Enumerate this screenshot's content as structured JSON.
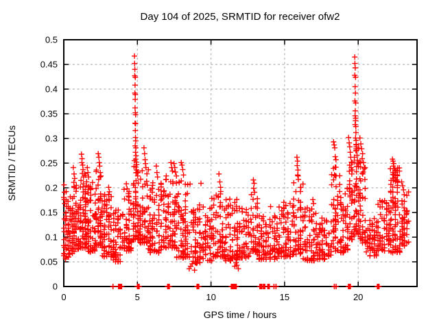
{
  "chart_data": {
    "type": "scatter",
    "title": "Day 104 of 2025, SRMTID for receiver ofw2",
    "xlabel": "GPS time / hours",
    "ylabel": "SRMTID / TECUs",
    "xlim": [
      0,
      24
    ],
    "ylim": [
      0,
      0.5
    ],
    "xticks": [
      "0",
      "5",
      "10",
      "15",
      "20"
    ],
    "yticks": [
      "0",
      "0.05",
      "0.1",
      "0.15",
      "0.2",
      "0.25",
      "0.3",
      "0.35",
      "0.4",
      "0.45",
      "0.5"
    ],
    "grid": true,
    "legend": "none",
    "marker": "plus",
    "seed": 7,
    "colors": {
      "marker": "#ff0000",
      "grid": "#b4b4b4",
      "axis": "#000000",
      "text": "#000000",
      "background": "#ffffff"
    },
    "band_segments": [
      [
        0.0,
        0.35,
        0.055,
        0.2,
        38
      ],
      [
        0.35,
        0.7,
        0.065,
        0.185,
        40
      ],
      [
        0.7,
        1.1,
        0.075,
        0.205,
        52
      ],
      [
        1.1,
        1.55,
        0.078,
        0.235,
        56
      ],
      [
        1.55,
        2.2,
        0.07,
        0.215,
        70
      ],
      [
        2.2,
        2.6,
        0.08,
        0.235,
        46
      ],
      [
        2.6,
        3.35,
        0.06,
        0.19,
        68
      ],
      [
        3.35,
        4.0,
        0.05,
        0.158,
        52
      ],
      [
        4.0,
        4.65,
        0.072,
        0.198,
        58
      ],
      [
        4.65,
        5.12,
        0.095,
        0.235,
        48
      ],
      [
        5.12,
        5.75,
        0.088,
        0.238,
        54
      ],
      [
        5.75,
        6.6,
        0.068,
        0.215,
        72
      ],
      [
        6.6,
        7.65,
        0.078,
        0.228,
        88
      ],
      [
        7.65,
        8.6,
        0.058,
        0.225,
        82
      ],
      [
        8.6,
        9.35,
        0.048,
        0.178,
        54
      ],
      [
        9.35,
        10.05,
        0.052,
        0.162,
        44
      ],
      [
        10.05,
        10.95,
        0.06,
        0.202,
        70
      ],
      [
        10.95,
        11.8,
        0.052,
        0.182,
        58
      ],
      [
        11.8,
        12.65,
        0.058,
        0.162,
        64
      ],
      [
        12.65,
        13.15,
        0.068,
        0.192,
        40
      ],
      [
        13.15,
        14.55,
        0.055,
        0.148,
        92
      ],
      [
        14.55,
        15.55,
        0.06,
        0.172,
        76
      ],
      [
        15.55,
        16.25,
        0.065,
        0.228,
        56
      ],
      [
        16.25,
        17.25,
        0.052,
        0.162,
        64
      ],
      [
        17.25,
        18.2,
        0.055,
        0.142,
        58
      ],
      [
        18.2,
        18.75,
        0.072,
        0.242,
        46
      ],
      [
        18.75,
        19.35,
        0.068,
        0.212,
        46
      ],
      [
        19.35,
        19.78,
        0.095,
        0.272,
        40
      ],
      [
        19.78,
        20.12,
        0.105,
        0.292,
        38
      ],
      [
        20.12,
        20.55,
        0.088,
        0.262,
        38
      ],
      [
        20.55,
        21.35,
        0.062,
        0.142,
        52
      ],
      [
        21.35,
        22.15,
        0.072,
        0.178,
        58
      ],
      [
        22.15,
        22.95,
        0.068,
        0.242,
        84
      ],
      [
        22.95,
        23.42,
        0.082,
        0.202,
        46
      ]
    ],
    "peak_points": [
      [
        4.8,
        0.467
      ],
      [
        4.81,
        0.452
      ],
      [
        4.83,
        0.44
      ],
      [
        4.82,
        0.427
      ],
      [
        4.86,
        0.424
      ],
      [
        4.84,
        0.408
      ],
      [
        4.83,
        0.392
      ],
      [
        4.86,
        0.389
      ],
      [
        4.85,
        0.379
      ],
      [
        4.84,
        0.362
      ],
      [
        4.86,
        0.352
      ],
      [
        4.88,
        0.348
      ],
      [
        4.84,
        0.331
      ],
      [
        4.88,
        0.33
      ],
      [
        4.86,
        0.316
      ],
      [
        4.87,
        0.302
      ],
      [
        4.89,
        0.295
      ],
      [
        4.85,
        0.285
      ],
      [
        4.9,
        0.281
      ],
      [
        4.87,
        0.272
      ],
      [
        4.91,
        0.265
      ],
      [
        4.89,
        0.258
      ],
      [
        4.93,
        0.252
      ],
      [
        4.95,
        0.247
      ],
      [
        4.9,
        0.242
      ],
      [
        4.94,
        0.236
      ],
      [
        4.98,
        0.231
      ],
      [
        5.02,
        0.224
      ],
      [
        4.79,
        0.255
      ],
      [
        4.77,
        0.243
      ],
      [
        19.77,
        0.465
      ],
      [
        19.78,
        0.452
      ],
      [
        19.8,
        0.443
      ],
      [
        19.77,
        0.428
      ],
      [
        19.82,
        0.424
      ],
      [
        19.79,
        0.405
      ],
      [
        19.81,
        0.392
      ],
      [
        19.78,
        0.376
      ],
      [
        19.83,
        0.372
      ],
      [
        19.8,
        0.356
      ],
      [
        19.79,
        0.346
      ],
      [
        19.83,
        0.341
      ],
      [
        19.82,
        0.336
      ],
      [
        19.79,
        0.328
      ],
      [
        19.84,
        0.324
      ],
      [
        19.85,
        0.312
      ],
      [
        19.82,
        0.301
      ],
      [
        19.86,
        0.296
      ],
      [
        19.88,
        0.287
      ],
      [
        19.9,
        0.276
      ],
      [
        19.92,
        0.266
      ],
      [
        19.95,
        0.256
      ],
      [
        19.98,
        0.249
      ],
      [
        20.02,
        0.243
      ],
      [
        19.74,
        0.262
      ],
      [
        19.72,
        0.252
      ],
      [
        19.35,
        0.302
      ],
      [
        19.39,
        0.291
      ],
      [
        19.43,
        0.283
      ],
      [
        19.46,
        0.272
      ],
      [
        19.5,
        0.262
      ],
      [
        19.54,
        0.252
      ],
      [
        19.42,
        0.246
      ],
      [
        19.52,
        0.241
      ],
      [
        19.6,
        0.236
      ],
      [
        19.57,
        0.228
      ],
      [
        20.12,
        0.301
      ],
      [
        20.18,
        0.289
      ],
      [
        20.24,
        0.279
      ],
      [
        20.3,
        0.269
      ],
      [
        20.27,
        0.259
      ],
      [
        20.36,
        0.251
      ],
      [
        20.42,
        0.241
      ],
      [
        20.34,
        0.232
      ],
      [
        0.02,
        0.206
      ],
      [
        0.04,
        0.191
      ],
      [
        0.03,
        0.176
      ],
      [
        0.06,
        0.168
      ],
      [
        0.02,
        0.095
      ],
      [
        0.04,
        0.079
      ],
      [
        0.05,
        0.066
      ],
      [
        0.65,
        0.241
      ],
      [
        0.7,
        0.228
      ],
      [
        0.74,
        0.219
      ],
      [
        0.68,
        0.211
      ],
      [
        1.2,
        0.268
      ],
      [
        1.24,
        0.259
      ],
      [
        1.23,
        0.251
      ],
      [
        1.28,
        0.246
      ],
      [
        1.31,
        0.237
      ],
      [
        1.26,
        0.229
      ],
      [
        1.34,
        0.222
      ],
      [
        1.6,
        0.241
      ],
      [
        1.64,
        0.231
      ],
      [
        1.68,
        0.222
      ],
      [
        2.34,
        0.269
      ],
      [
        2.38,
        0.262
      ],
      [
        2.41,
        0.251
      ],
      [
        2.44,
        0.244
      ],
      [
        2.22,
        0.236
      ],
      [
        2.48,
        0.231
      ],
      [
        2.52,
        0.224
      ],
      [
        3.05,
        0.201
      ],
      [
        3.1,
        0.192
      ],
      [
        4.25,
        0.208
      ],
      [
        4.3,
        0.198
      ],
      [
        5.45,
        0.281
      ],
      [
        5.49,
        0.269
      ],
      [
        5.52,
        0.257
      ],
      [
        5.55,
        0.249
      ],
      [
        5.58,
        0.241
      ],
      [
        6.28,
        0.244
      ],
      [
        6.33,
        0.231
      ],
      [
        6.37,
        0.222
      ],
      [
        7.28,
        0.251
      ],
      [
        7.33,
        0.241
      ],
      [
        7.38,
        0.234
      ],
      [
        7.49,
        0.249
      ],
      [
        7.54,
        0.241
      ],
      [
        7.58,
        0.232
      ],
      [
        7.98,
        0.251
      ],
      [
        8.03,
        0.246
      ],
      [
        8.08,
        0.237
      ],
      [
        8.13,
        0.226
      ],
      [
        8.52,
        0.036
      ],
      [
        8.62,
        0.041
      ],
      [
        8.72,
        0.046
      ],
      [
        8.88,
        0.033
      ],
      [
        9.02,
        0.047
      ],
      [
        9.32,
        0.209
      ],
      [
        10.54,
        0.228
      ],
      [
        10.6,
        0.212
      ],
      [
        10.65,
        0.201
      ],
      [
        11.62,
        0.041
      ],
      [
        11.76,
        0.043
      ],
      [
        11.86,
        0.036
      ],
      [
        11.7,
        0.048
      ],
      [
        12.4,
        0.156
      ],
      [
        12.88,
        0.216
      ],
      [
        12.93,
        0.209
      ],
      [
        12.9,
        0.199
      ],
      [
        12.96,
        0.191
      ],
      [
        14.05,
        0.162
      ],
      [
        15.84,
        0.262
      ],
      [
        15.88,
        0.254
      ],
      [
        15.86,
        0.245
      ],
      [
        15.91,
        0.236
      ],
      [
        15.89,
        0.226
      ],
      [
        15.94,
        0.217
      ],
      [
        16.92,
        0.176
      ],
      [
        16.97,
        0.168
      ],
      [
        18.33,
        0.293
      ],
      [
        18.37,
        0.287
      ],
      [
        18.41,
        0.281
      ],
      [
        18.44,
        0.263
      ],
      [
        18.49,
        0.257
      ],
      [
        18.39,
        0.226
      ],
      [
        22.33,
        0.258
      ],
      [
        22.37,
        0.254
      ],
      [
        22.42,
        0.249
      ],
      [
        22.39,
        0.244
      ],
      [
        22.46,
        0.239
      ],
      [
        22.51,
        0.236
      ],
      [
        22.55,
        0.231
      ],
      [
        22.44,
        0.226
      ],
      [
        22.53,
        0.221
      ],
      [
        22.62,
        0.216
      ],
      [
        22.68,
        0.211
      ],
      [
        22.95,
        0.212
      ],
      [
        23.02,
        0.204
      ],
      [
        23.08,
        0.196
      ]
    ],
    "zero_markers": [
      [
        3.34,
        3.34,
        1
      ],
      [
        3.72,
        3.93,
        5
      ],
      [
        5.0,
        5.12,
        4
      ],
      [
        7.05,
        7.17,
        4
      ],
      [
        9.05,
        9.17,
        4
      ],
      [
        11.38,
        11.72,
        8
      ],
      [
        13.32,
        13.46,
        4
      ],
      [
        13.56,
        13.66,
        3
      ],
      [
        13.86,
        13.96,
        3
      ],
      [
        14.28,
        14.28,
        1
      ],
      [
        14.42,
        14.42,
        1
      ],
      [
        18.38,
        18.38,
        1
      ],
      [
        18.5,
        18.5,
        1
      ],
      [
        19.34,
        19.47,
        4
      ],
      [
        21.3,
        21.42,
        4
      ]
    ]
  }
}
